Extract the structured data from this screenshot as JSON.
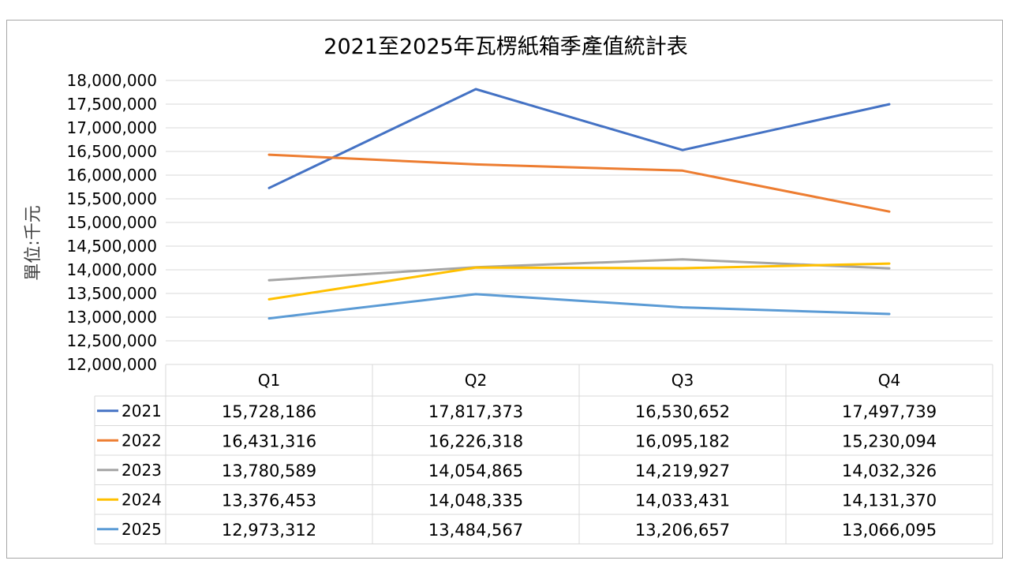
{
  "chart_data": {
    "type": "line",
    "title": "2021至2025年瓦楞紙箱季產值統計表",
    "ylabel": "單位:千元",
    "xlabel": "",
    "categories": [
      "Q1",
      "Q2",
      "Q3",
      "Q4"
    ],
    "ylim": [
      12000000,
      18000000
    ],
    "ytick_step": 500000,
    "yticks": [
      "12,000,000",
      "12,500,000",
      "13,000,000",
      "13,500,000",
      "14,000,000",
      "14,500,000",
      "15,000,000",
      "15,500,000",
      "16,000,000",
      "16,500,000",
      "17,000,000",
      "17,500,000",
      "18,000,000"
    ],
    "grid": true,
    "legend": "data-table",
    "series": [
      {
        "name": "2021",
        "color": "#4472c4",
        "values": [
          15728186,
          17817373,
          16530652,
          17497739
        ],
        "labels": [
          "15,728,186",
          "17,817,373",
          "16,530,652",
          "17,497,739"
        ]
      },
      {
        "name": "2022",
        "color": "#ed7d31",
        "values": [
          16431316,
          16226318,
          16095182,
          15230094
        ],
        "labels": [
          "16,431,316",
          "16,226,318",
          "16,095,182",
          "15,230,094"
        ]
      },
      {
        "name": "2023",
        "color": "#a5a5a5",
        "values": [
          13780589,
          14054865,
          14219927,
          14032326
        ],
        "labels": [
          "13,780,589",
          "14,054,865",
          "14,219,927",
          "14,032,326"
        ]
      },
      {
        "name": "2024",
        "color": "#ffc000",
        "values": [
          13376453,
          14048335,
          14033431,
          14131370
        ],
        "labels": [
          "13,376,453",
          "14,048,335",
          "14,033,431",
          "14,131,370"
        ]
      },
      {
        "name": "2025",
        "color": "#5b9bd5",
        "values": [
          12973312,
          13484567,
          13206657,
          13066095
        ],
        "labels": [
          "12,973,312",
          "13,484,567",
          "13,206,657",
          "13,066,095"
        ]
      }
    ]
  }
}
